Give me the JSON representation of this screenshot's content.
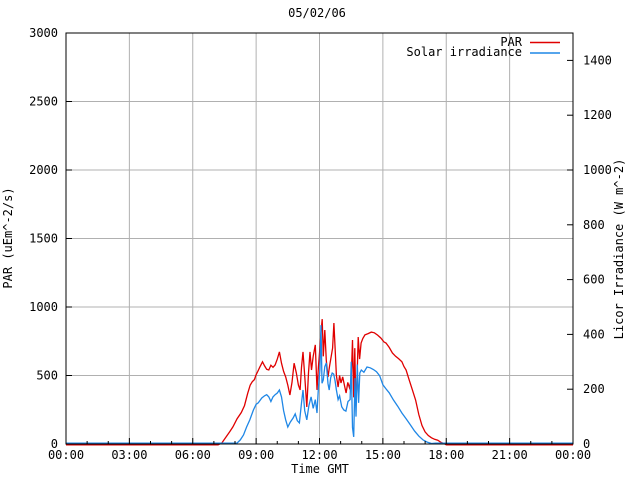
{
  "chart_data": {
    "type": "line",
    "title": "05/02/06",
    "xlabel": "Time GMT",
    "grid": true,
    "legend_position": "top-right-inside",
    "x_axis": {
      "min_hour": 0,
      "max_hour": 24,
      "major_tick_hours": 3,
      "minor_tick_hours": 1,
      "tick_labels": [
        "00:00",
        "03:00",
        "06:00",
        "09:00",
        "12:00",
        "15:00",
        "18:00",
        "21:00",
        "00:00"
      ]
    },
    "left_axis": {
      "label": "PAR (uEm^-2/s)",
      "min": 0,
      "max": 3000,
      "tick_step": 500,
      "tick_labels": [
        "0",
        "500",
        "1000",
        "1500",
        "2000",
        "2500",
        "3000"
      ]
    },
    "right_axis": {
      "label": "Licor Irradiance (W m^-2)",
      "min": 0,
      "max": 1500,
      "tick_step": 200,
      "tick_labels": [
        "0",
        "200",
        "400",
        "600",
        "800",
        "1000",
        "1200",
        "1400"
      ]
    },
    "colors": {
      "grid": "#b0b0b0",
      "frame": "#000000",
      "text": "#000000",
      "background": "#ffffff"
    },
    "series": [
      {
        "name": "PAR",
        "axis": "left",
        "units": "uEm^-2/s",
        "color": "#e00000",
        "points": [
          [
            0,
            0
          ],
          [
            7.2,
            0
          ],
          [
            7.38,
            8
          ],
          [
            7.55,
            45
          ],
          [
            7.75,
            90
          ],
          [
            7.9,
            125
          ],
          [
            8.1,
            185
          ],
          [
            8.3,
            230
          ],
          [
            8.45,
            280
          ],
          [
            8.6,
            370
          ],
          [
            8.72,
            430
          ],
          [
            8.82,
            455
          ],
          [
            8.92,
            470
          ],
          [
            9.0,
            505
          ],
          [
            9.08,
            530
          ],
          [
            9.17,
            560
          ],
          [
            9.3,
            600
          ],
          [
            9.4,
            570
          ],
          [
            9.5,
            545
          ],
          [
            9.6,
            540
          ],
          [
            9.7,
            575
          ],
          [
            9.8,
            560
          ],
          [
            9.9,
            577
          ],
          [
            10.0,
            620
          ],
          [
            10.1,
            672
          ],
          [
            10.2,
            590
          ],
          [
            10.3,
            530
          ],
          [
            10.4,
            489
          ],
          [
            10.5,
            430
          ],
          [
            10.6,
            358
          ],
          [
            10.7,
            450
          ],
          [
            10.8,
            590
          ],
          [
            10.9,
            520
          ],
          [
            11.0,
            430
          ],
          [
            11.08,
            395
          ],
          [
            11.15,
            560
          ],
          [
            11.22,
            672
          ],
          [
            11.3,
            500
          ],
          [
            11.4,
            270
          ],
          [
            11.48,
            520
          ],
          [
            11.55,
            672
          ],
          [
            11.62,
            540
          ],
          [
            11.7,
            640
          ],
          [
            11.8,
            723
          ],
          [
            11.88,
            395
          ],
          [
            11.95,
            560
          ],
          [
            12.02,
            700
          ],
          [
            12.08,
            830
          ],
          [
            12.13,
            912
          ],
          [
            12.18,
            640
          ],
          [
            12.25,
            832
          ],
          [
            12.32,
            610
          ],
          [
            12.4,
            489
          ],
          [
            12.48,
            570
          ],
          [
            12.55,
            635
          ],
          [
            12.62,
            700
          ],
          [
            12.68,
            883
          ],
          [
            12.74,
            700
          ],
          [
            12.8,
            500
          ],
          [
            12.88,
            416
          ],
          [
            12.95,
            500
          ],
          [
            13.02,
            445
          ],
          [
            13.1,
            490
          ],
          [
            13.18,
            430
          ],
          [
            13.26,
            372
          ],
          [
            13.34,
            450
          ],
          [
            13.42,
            410
          ],
          [
            13.5,
            467
          ],
          [
            13.56,
            759
          ],
          [
            13.62,
            340
          ],
          [
            13.67,
            700
          ],
          [
            13.72,
            280
          ],
          [
            13.78,
            489
          ],
          [
            13.83,
            781
          ],
          [
            13.9,
            620
          ],
          [
            13.97,
            737
          ],
          [
            14.05,
            770
          ],
          [
            14.15,
            796
          ],
          [
            14.3,
            806
          ],
          [
            14.45,
            817
          ],
          [
            14.6,
            812
          ],
          [
            14.75,
            795
          ],
          [
            14.9,
            774
          ],
          [
            15.05,
            745
          ],
          [
            15.15,
            737
          ],
          [
            15.3,
            705
          ],
          [
            15.45,
            664
          ],
          [
            15.6,
            640
          ],
          [
            15.75,
            622
          ],
          [
            15.9,
            600
          ],
          [
            16.0,
            565
          ],
          [
            16.1,
            540
          ],
          [
            16.25,
            465
          ],
          [
            16.4,
            395
          ],
          [
            16.55,
            321
          ],
          [
            16.7,
            215
          ],
          [
            16.85,
            135
          ],
          [
            17.0,
            88
          ],
          [
            17.15,
            62
          ],
          [
            17.3,
            45
          ],
          [
            17.45,
            34
          ],
          [
            17.6,
            28
          ],
          [
            17.75,
            12
          ],
          [
            17.9,
            3
          ],
          [
            18.0,
            0
          ],
          [
            24,
            0
          ]
        ]
      },
      {
        "name": "Solar irradiance",
        "axis": "right",
        "units": "W m^-2",
        "color": "#1f87e6",
        "points": [
          [
            0,
            0
          ],
          [
            7.95,
            0
          ],
          [
            8.09,
            3
          ],
          [
            8.25,
            15
          ],
          [
            8.4,
            33
          ],
          [
            8.55,
            62
          ],
          [
            8.7,
            88
          ],
          [
            8.87,
            124
          ],
          [
            9.0,
            145
          ],
          [
            9.1,
            150
          ],
          [
            9.27,
            168
          ],
          [
            9.4,
            176
          ],
          [
            9.5,
            180
          ],
          [
            9.6,
            172
          ],
          [
            9.7,
            155
          ],
          [
            9.8,
            172
          ],
          [
            9.9,
            180
          ],
          [
            10.0,
            186
          ],
          [
            10.1,
            197
          ],
          [
            10.2,
            172
          ],
          [
            10.3,
            122
          ],
          [
            10.4,
            88
          ],
          [
            10.5,
            62
          ],
          [
            10.62,
            80
          ],
          [
            10.75,
            95
          ],
          [
            10.85,
            110
          ],
          [
            10.95,
            85
          ],
          [
            11.05,
            77
          ],
          [
            11.15,
            150
          ],
          [
            11.22,
            197
          ],
          [
            11.3,
            122
          ],
          [
            11.4,
            88
          ],
          [
            11.5,
            140
          ],
          [
            11.6,
            172
          ],
          [
            11.7,
            130
          ],
          [
            11.8,
            162
          ],
          [
            11.88,
            113
          ],
          [
            11.95,
            205
          ],
          [
            12.02,
            270
          ],
          [
            12.07,
            434
          ],
          [
            12.12,
            222
          ],
          [
            12.18,
            234
          ],
          [
            12.25,
            282
          ],
          [
            12.32,
            296
          ],
          [
            12.4,
            220
          ],
          [
            12.46,
            197
          ],
          [
            12.53,
            242
          ],
          [
            12.6,
            259
          ],
          [
            12.67,
            255
          ],
          [
            12.74,
            230
          ],
          [
            12.8,
            197
          ],
          [
            12.88,
            162
          ],
          [
            12.95,
            176
          ],
          [
            13.05,
            136
          ],
          [
            13.15,
            124
          ],
          [
            13.25,
            120
          ],
          [
            13.35,
            155
          ],
          [
            13.45,
            162
          ],
          [
            13.5,
            300
          ],
          [
            13.56,
            60
          ],
          [
            13.62,
            26
          ],
          [
            13.68,
            240
          ],
          [
            13.73,
            100
          ],
          [
            13.79,
            290
          ],
          [
            13.85,
            150
          ],
          [
            13.91,
            259
          ],
          [
            13.98,
            270
          ],
          [
            14.1,
            262
          ],
          [
            14.25,
            281
          ],
          [
            14.4,
            278
          ],
          [
            14.55,
            272
          ],
          [
            14.7,
            264
          ],
          [
            14.85,
            249
          ],
          [
            15.0,
            216
          ],
          [
            15.15,
            201
          ],
          [
            15.3,
            187
          ],
          [
            15.5,
            161
          ],
          [
            15.7,
            138
          ],
          [
            15.9,
            113
          ],
          [
            16.1,
            92
          ],
          [
            16.3,
            70
          ],
          [
            16.5,
            47
          ],
          [
            16.7,
            29
          ],
          [
            16.9,
            15
          ],
          [
            17.1,
            7
          ],
          [
            17.3,
            2
          ],
          [
            17.5,
            0
          ],
          [
            24,
            0
          ]
        ]
      }
    ]
  }
}
